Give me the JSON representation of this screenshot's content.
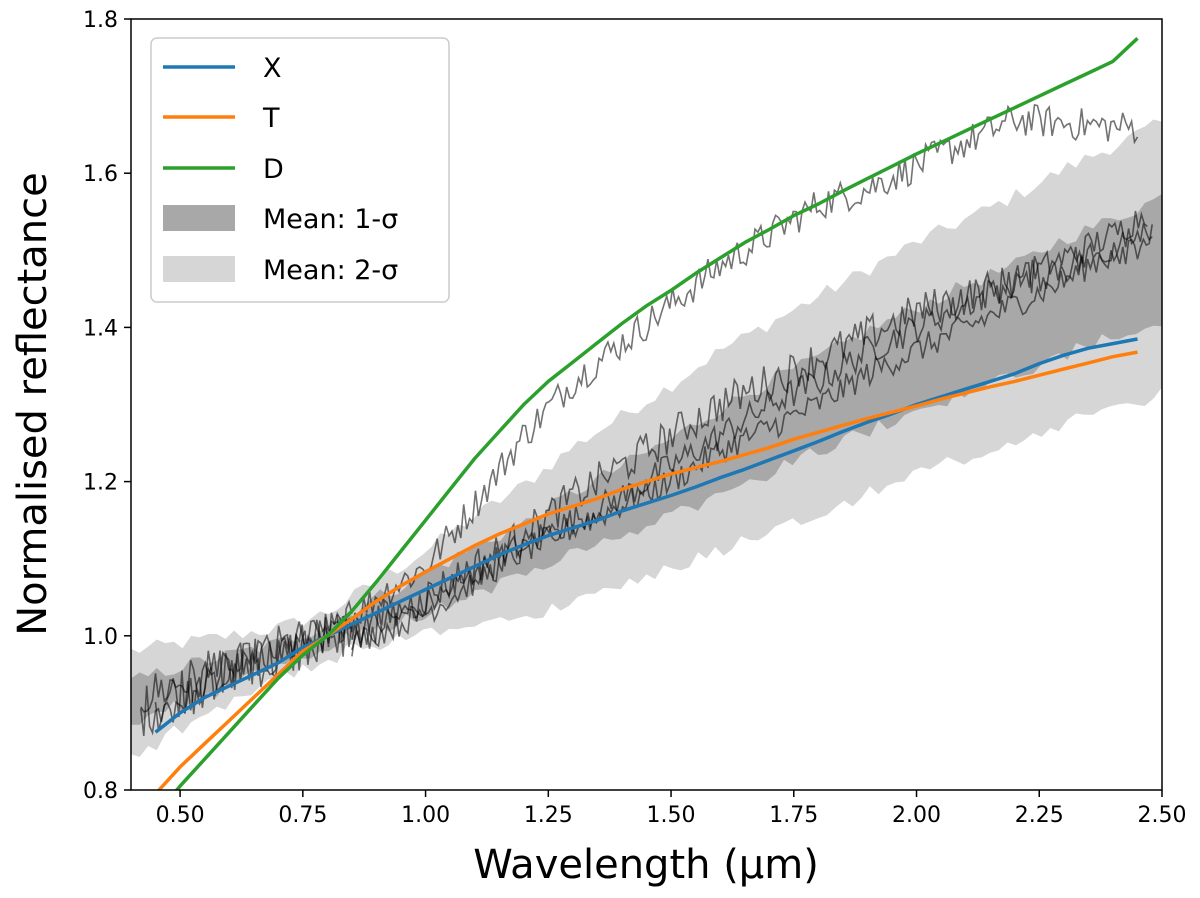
{
  "chart_data": {
    "type": "line",
    "title": "",
    "xlabel": "Wavelength (µm)",
    "ylabel": "Normalised reflectance",
    "xlim": [
      0.4,
      2.5
    ],
    "ylim": [
      0.8,
      1.8
    ],
    "grid": false,
    "legend_position": "top-left",
    "xticks": [
      "0.50",
      "0.75",
      "1.00",
      "1.25",
      "1.50",
      "1.75",
      "2.00",
      "2.25",
      "2.50"
    ],
    "yticks": [
      "0.8",
      "1.0",
      "1.2",
      "1.4",
      "1.6",
      "1.8"
    ],
    "series": [
      {
        "name": "X",
        "color": "#1f77b4",
        "points": [
          [
            0.45,
            0.875
          ],
          [
            0.5,
            0.9
          ],
          [
            0.55,
            0.92
          ],
          [
            0.6,
            0.935
          ],
          [
            0.65,
            0.95
          ],
          [
            0.7,
            0.965
          ],
          [
            0.75,
            0.985
          ],
          [
            0.8,
            1.0
          ],
          [
            0.85,
            1.015
          ],
          [
            0.9,
            1.03
          ],
          [
            0.95,
            1.045
          ],
          [
            1.0,
            1.06
          ],
          [
            1.05,
            1.075
          ],
          [
            1.1,
            1.09
          ],
          [
            1.15,
            1.105
          ],
          [
            1.2,
            1.118
          ],
          [
            1.25,
            1.13
          ],
          [
            1.3,
            1.14
          ],
          [
            1.35,
            1.15
          ],
          [
            1.4,
            1.162
          ],
          [
            1.45,
            1.172
          ],
          [
            1.5,
            1.182
          ],
          [
            1.55,
            1.193
          ],
          [
            1.6,
            1.205
          ],
          [
            1.65,
            1.216
          ],
          [
            1.7,
            1.228
          ],
          [
            1.75,
            1.24
          ],
          [
            1.8,
            1.252
          ],
          [
            1.85,
            1.265
          ],
          [
            1.9,
            1.277
          ],
          [
            1.95,
            1.288
          ],
          [
            2.0,
            1.3
          ],
          [
            2.05,
            1.31
          ],
          [
            2.1,
            1.32
          ],
          [
            2.15,
            1.33
          ],
          [
            2.2,
            1.34
          ],
          [
            2.25,
            1.353
          ],
          [
            2.3,
            1.364
          ],
          [
            2.35,
            1.373
          ],
          [
            2.4,
            1.379
          ],
          [
            2.45,
            1.385
          ]
        ]
      },
      {
        "name": "T",
        "color": "#ff7f0e",
        "points": [
          [
            0.45,
            0.795
          ],
          [
            0.5,
            0.83
          ],
          [
            0.55,
            0.86
          ],
          [
            0.6,
            0.89
          ],
          [
            0.65,
            0.92
          ],
          [
            0.7,
            0.95
          ],
          [
            0.75,
            0.98
          ],
          [
            0.8,
            1.0
          ],
          [
            0.85,
            1.022
          ],
          [
            0.9,
            1.045
          ],
          [
            0.95,
            1.065
          ],
          [
            1.0,
            1.083
          ],
          [
            1.05,
            1.1
          ],
          [
            1.1,
            1.117
          ],
          [
            1.15,
            1.132
          ],
          [
            1.2,
            1.145
          ],
          [
            1.25,
            1.158
          ],
          [
            1.3,
            1.168
          ],
          [
            1.35,
            1.178
          ],
          [
            1.4,
            1.19
          ],
          [
            1.45,
            1.2
          ],
          [
            1.5,
            1.21
          ],
          [
            1.55,
            1.218
          ],
          [
            1.6,
            1.226
          ],
          [
            1.65,
            1.235
          ],
          [
            1.7,
            1.244
          ],
          [
            1.75,
            1.255
          ],
          [
            1.8,
            1.264
          ],
          [
            1.85,
            1.273
          ],
          [
            1.9,
            1.282
          ],
          [
            1.95,
            1.29
          ],
          [
            2.0,
            1.298
          ],
          [
            2.05,
            1.307
          ],
          [
            2.1,
            1.315
          ],
          [
            2.15,
            1.323
          ],
          [
            2.2,
            1.33
          ],
          [
            2.25,
            1.338
          ],
          [
            2.3,
            1.346
          ],
          [
            2.35,
            1.354
          ],
          [
            2.4,
            1.362
          ],
          [
            2.45,
            1.368
          ]
        ]
      },
      {
        "name": "D",
        "color": "#2ca02c",
        "points": [
          [
            0.48,
            0.79
          ],
          [
            0.5,
            0.805
          ],
          [
            0.55,
            0.84
          ],
          [
            0.6,
            0.875
          ],
          [
            0.65,
            0.91
          ],
          [
            0.7,
            0.945
          ],
          [
            0.75,
            0.975
          ],
          [
            0.8,
            1.0
          ],
          [
            0.85,
            1.032
          ],
          [
            0.9,
            1.07
          ],
          [
            0.95,
            1.11
          ],
          [
            1.0,
            1.15
          ],
          [
            1.05,
            1.19
          ],
          [
            1.1,
            1.23
          ],
          [
            1.15,
            1.265
          ],
          [
            1.2,
            1.3
          ],
          [
            1.25,
            1.33
          ],
          [
            1.3,
            1.355
          ],
          [
            1.35,
            1.38
          ],
          [
            1.4,
            1.405
          ],
          [
            1.45,
            1.428
          ],
          [
            1.5,
            1.448
          ],
          [
            1.55,
            1.47
          ],
          [
            1.6,
            1.49
          ],
          [
            1.65,
            1.51
          ],
          [
            1.7,
            1.527
          ],
          [
            1.75,
            1.545
          ],
          [
            1.8,
            1.56
          ],
          [
            1.85,
            1.577
          ],
          [
            1.9,
            1.593
          ],
          [
            1.95,
            1.609
          ],
          [
            2.0,
            1.625
          ],
          [
            2.05,
            1.64
          ],
          [
            2.1,
            1.655
          ],
          [
            2.15,
            1.67
          ],
          [
            2.2,
            1.685
          ],
          [
            2.25,
            1.7
          ],
          [
            2.3,
            1.715
          ],
          [
            2.35,
            1.73
          ],
          [
            2.4,
            1.745
          ],
          [
            2.45,
            1.775
          ]
        ]
      }
    ],
    "mean_spectrum": {
      "x": [
        0.4,
        0.5,
        0.6,
        0.7,
        0.8,
        0.9,
        1.0,
        1.1,
        1.2,
        1.3,
        1.4,
        1.5,
        1.6,
        1.7,
        1.8,
        1.9,
        2.0,
        2.1,
        2.2,
        2.3,
        2.4,
        2.5
      ],
      "mean": [
        0.91,
        0.935,
        0.955,
        0.975,
        1.0,
        1.03,
        1.055,
        1.085,
        1.11,
        1.145,
        1.175,
        1.205,
        1.24,
        1.27,
        1.3,
        1.33,
        1.36,
        1.385,
        1.41,
        1.44,
        1.465,
        1.49
      ]
    },
    "bands": [
      {
        "name": "Mean: 1-σ",
        "color": "#a8a8a8",
        "half_width": [
          0.03,
          0.025,
          0.02,
          0.015,
          0.015,
          0.02,
          0.025,
          0.03,
          0.035,
          0.04,
          0.045,
          0.05,
          0.055,
          0.06,
          0.06,
          0.065,
          0.065,
          0.07,
          0.07,
          0.075,
          0.075,
          0.08
        ]
      },
      {
        "name": "Mean: 2-σ",
        "color": "#d6d6d6",
        "half_width": [
          0.07,
          0.055,
          0.045,
          0.035,
          0.03,
          0.04,
          0.055,
          0.07,
          0.085,
          0.1,
          0.11,
          0.12,
          0.13,
          0.135,
          0.14,
          0.145,
          0.15,
          0.155,
          0.16,
          0.165,
          0.17,
          0.175
        ]
      }
    ],
    "individual_spectra": [
      {
        "color": "#000000",
        "points": [
          [
            0.42,
            0.9
          ],
          [
            0.5,
            0.93
          ],
          [
            0.6,
            0.96
          ],
          [
            0.7,
            0.97
          ],
          [
            0.8,
            1.0
          ],
          [
            0.85,
            1.01
          ]
        ],
        "noise": 0.035
      },
      {
        "color": "#000000",
        "points": [
          [
            0.42,
            0.92
          ],
          [
            0.5,
            0.94
          ],
          [
            0.6,
            0.95
          ],
          [
            0.7,
            0.985
          ],
          [
            0.8,
            1.0
          ],
          [
            0.85,
            1.0
          ]
        ],
        "noise": 0.03
      },
      {
        "color": "#000000",
        "points": [
          [
            0.45,
            0.9
          ],
          [
            0.55,
            0.93
          ],
          [
            0.65,
            0.965
          ],
          [
            0.75,
            0.99
          ],
          [
            0.85,
            1.0
          ]
        ],
        "noise": 0.028
      },
      {
        "color": "#000000",
        "points": [
          [
            0.82,
            1.01
          ],
          [
            0.9,
            1.05
          ],
          [
            1.0,
            1.09
          ],
          [
            1.1,
            1.17
          ],
          [
            1.2,
            1.26
          ],
          [
            1.3,
            1.33
          ],
          [
            1.4,
            1.38
          ],
          [
            1.5,
            1.43
          ],
          [
            1.6,
            1.48
          ],
          [
            1.7,
            1.52
          ],
          [
            1.8,
            1.56
          ],
          [
            1.9,
            1.58
          ],
          [
            2.0,
            1.61
          ],
          [
            2.1,
            1.64
          ],
          [
            2.2,
            1.67
          ],
          [
            2.3,
            1.665
          ],
          [
            2.4,
            1.66
          ],
          [
            2.45,
            1.66
          ]
        ],
        "noise": 0.022
      },
      {
        "color": "#000000",
        "points": [
          [
            0.85,
            1.0
          ],
          [
            1.0,
            1.04
          ],
          [
            1.1,
            1.08
          ],
          [
            1.2,
            1.12
          ],
          [
            1.3,
            1.15
          ],
          [
            1.4,
            1.18
          ],
          [
            1.5,
            1.22
          ],
          [
            1.6,
            1.26
          ],
          [
            1.7,
            1.3
          ],
          [
            1.8,
            1.33
          ],
          [
            1.9,
            1.37
          ],
          [
            2.0,
            1.4
          ],
          [
            2.1,
            1.43
          ],
          [
            2.2,
            1.46
          ],
          [
            2.3,
            1.49
          ],
          [
            2.4,
            1.52
          ],
          [
            2.47,
            1.55
          ]
        ],
        "noise": 0.02
      },
      {
        "color": "#000000",
        "points": [
          [
            0.85,
            0.99
          ],
          [
            1.0,
            1.03
          ],
          [
            1.1,
            1.07
          ],
          [
            1.2,
            1.11
          ],
          [
            1.3,
            1.14
          ],
          [
            1.4,
            1.17
          ],
          [
            1.5,
            1.2
          ],
          [
            1.6,
            1.24
          ],
          [
            1.7,
            1.27
          ],
          [
            1.8,
            1.3
          ],
          [
            1.9,
            1.34
          ],
          [
            2.0,
            1.37
          ],
          [
            2.1,
            1.4
          ],
          [
            2.2,
            1.43
          ],
          [
            2.3,
            1.46
          ],
          [
            2.4,
            1.5
          ],
          [
            2.48,
            1.53
          ]
        ],
        "noise": 0.018
      },
      {
        "color": "#000000",
        "points": [
          [
            0.85,
            1.0
          ],
          [
            1.0,
            1.05
          ],
          [
            1.1,
            1.09
          ],
          [
            1.2,
            1.13
          ],
          [
            1.3,
            1.18
          ],
          [
            1.4,
            1.22
          ],
          [
            1.5,
            1.26
          ],
          [
            1.6,
            1.3
          ],
          [
            1.7,
            1.33
          ],
          [
            1.8,
            1.36
          ],
          [
            1.9,
            1.39
          ],
          [
            2.0,
            1.42
          ],
          [
            2.1,
            1.44
          ],
          [
            2.2,
            1.46
          ],
          [
            2.3,
            1.48
          ],
          [
            2.4,
            1.5
          ],
          [
            2.48,
            1.52
          ]
        ],
        "noise": 0.025
      }
    ]
  }
}
